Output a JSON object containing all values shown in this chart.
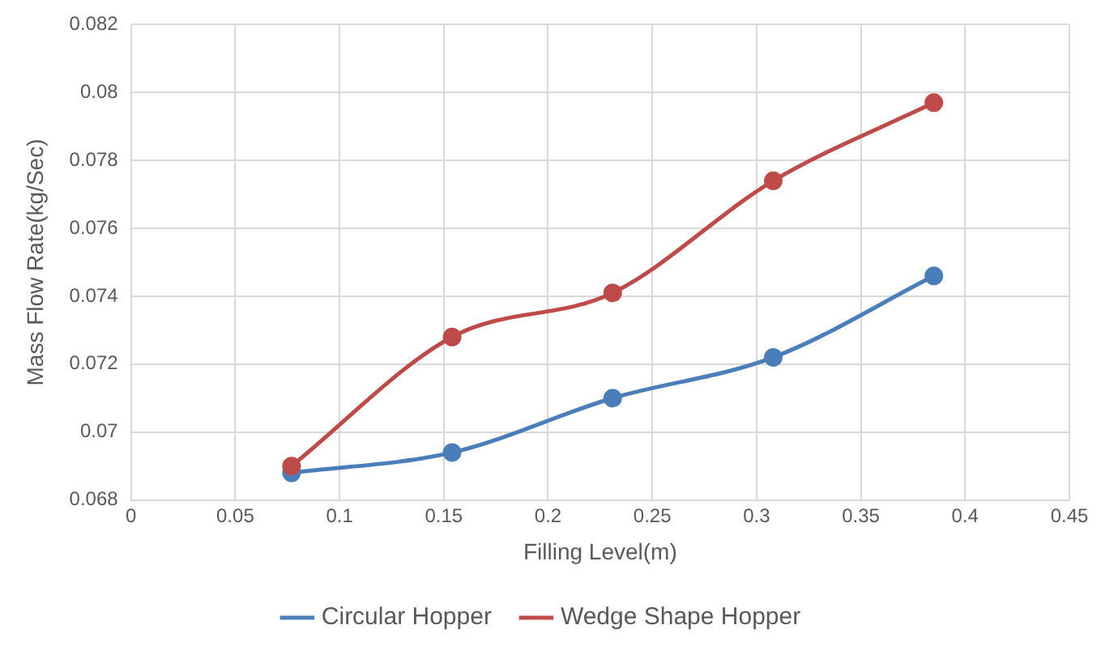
{
  "chart_data": {
    "type": "line",
    "xlabel": "Filling Level(m)",
    "ylabel": "Mass Flow Rate(kg/Sec)",
    "x": [
      0.077,
      0.154,
      0.231,
      0.308,
      0.385
    ],
    "series": [
      {
        "name": "Circular Hopper",
        "color": "#4a7ebb",
        "values": [
          0.0688,
          0.0694,
          0.071,
          0.0722,
          0.0746
        ]
      },
      {
        "name": "Wedge Shape Hopper",
        "color": "#be4b48",
        "values": [
          0.069,
          0.0728,
          0.0741,
          0.0774,
          0.0797
        ]
      }
    ],
    "xlim": [
      0,
      0.45
    ],
    "xticks": [
      0,
      0.05,
      0.1,
      0.15,
      0.2,
      0.25,
      0.3,
      0.35,
      0.4,
      0.45
    ],
    "ylim": [
      0.068,
      0.082
    ],
    "yticks": [
      0.068,
      0.07,
      0.072,
      0.074,
      0.076,
      0.078,
      0.08,
      0.082
    ],
    "grid": true,
    "legend": "bottom",
    "marker": "circle",
    "line_style": "solid"
  }
}
